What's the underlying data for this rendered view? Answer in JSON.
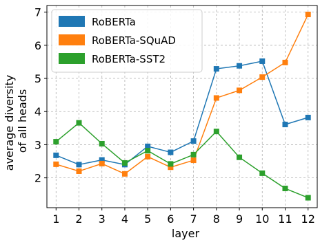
{
  "chart_data": {
    "type": "line",
    "xlabel": "layer",
    "ylabel_lines": [
      "average diversity",
      "of all heads"
    ],
    "x": [
      1,
      2,
      3,
      4,
      5,
      6,
      7,
      8,
      9,
      10,
      11,
      12
    ],
    "xlim": [
      0.6,
      12.4
    ],
    "ylim": [
      1.1,
      7.2
    ],
    "yticks": [
      2,
      3,
      4,
      5,
      6,
      7
    ],
    "grid": true,
    "legend_position": "top-left",
    "series": [
      {
        "name": "RoBERTa",
        "color": "#1f77b4",
        "values": [
          2.68,
          2.4,
          2.54,
          2.4,
          2.95,
          2.77,
          3.11,
          5.29,
          5.38,
          5.52,
          3.61,
          3.82
        ]
      },
      {
        "name": "RoBERTa-SQuAD",
        "color": "#ff7f0e",
        "values": [
          2.41,
          2.2,
          2.43,
          2.12,
          2.64,
          2.32,
          2.53,
          4.41,
          4.64,
          5.04,
          5.48,
          6.93
        ]
      },
      {
        "name": "RoBERTa-SST2",
        "color": "#2ca02c",
        "values": [
          3.09,
          3.66,
          3.03,
          2.45,
          2.82,
          2.42,
          2.7,
          3.4,
          2.62,
          2.14,
          1.68,
          1.4
        ]
      }
    ]
  }
}
